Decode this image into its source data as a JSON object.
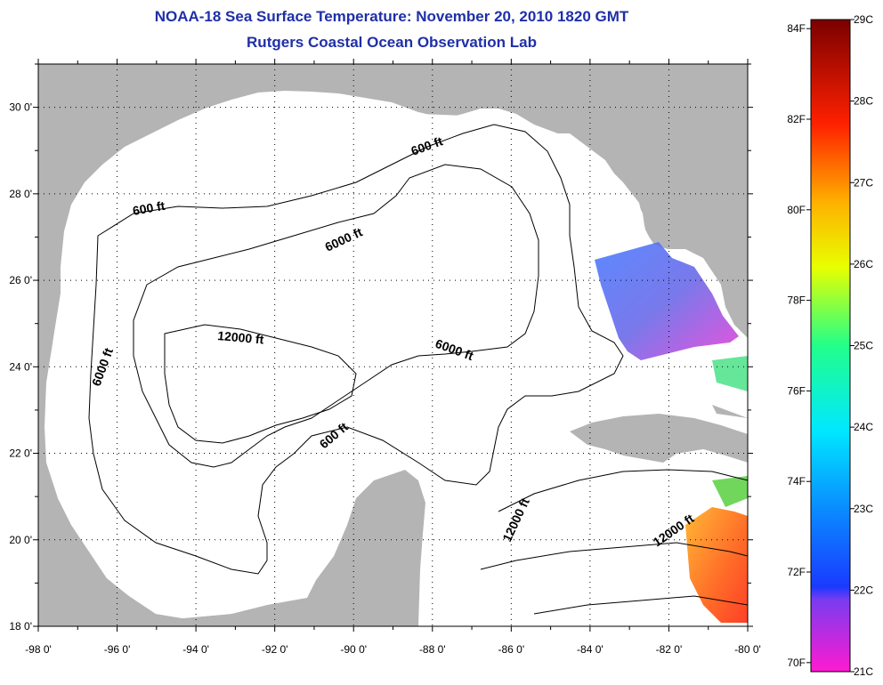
{
  "header": {
    "title": "NOAA-18 Sea Surface Temperature:  November 20, 2010 1820 GMT",
    "subtitle": "Rutgers Coastal Ocean Observation Lab"
  },
  "axes": {
    "lon_ticks": [
      "-98 0'",
      "-96 0'",
      "-94 0'",
      "-92 0'",
      "-90 0'",
      "-88 0'",
      "-86 0'",
      "-84 0'",
      "-82 0'",
      "-80 0'"
    ],
    "lat_ticks": [
      "30 0'",
      "28 0'",
      "26 0'",
      "24 0'",
      "22 0'",
      "20 0'",
      "18 0'"
    ]
  },
  "contour_labels": {
    "c600_north": "600 ft",
    "c600_west": "600 ft",
    "c6000_north": "6000 ft",
    "c12000_center": "12000 ft",
    "c6000_west": "6000 ft",
    "c6000_east": "6000 ft",
    "c600_south": "600 ft",
    "c12000_south": "12000 ft",
    "c12000_east": "12000 ft"
  },
  "colorbar": {
    "celsius": [
      "29C",
      "28C",
      "27C",
      "26C",
      "25C",
      "24C",
      "23C",
      "22C",
      "21C"
    ],
    "fahrenheit": [
      "84F",
      "82F",
      "80F",
      "78F",
      "76F",
      "74F",
      "72F",
      "70F"
    ]
  },
  "colors": {
    "land": "#b4b4b4",
    "ocean": "#ffffff",
    "title": "#1f2fa8",
    "grid": "#000000"
  }
}
